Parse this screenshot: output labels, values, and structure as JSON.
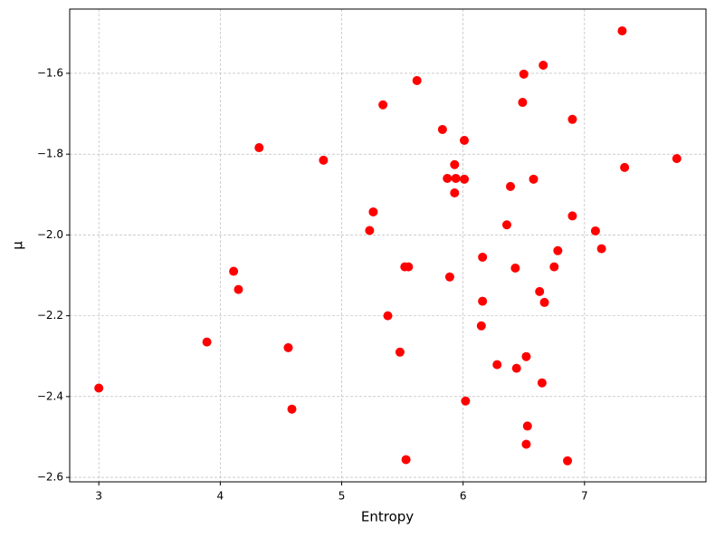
{
  "chart_data": {
    "type": "scatter",
    "xlabel": "Entropy",
    "ylabel": "μ",
    "color": "#ff0000",
    "grid": true,
    "xlim": [
      2.76,
      8.0
    ],
    "ylim": [
      -2.611,
      -1.441
    ],
    "xticks": [
      3,
      4,
      5,
      6,
      7
    ],
    "yticks": [
      {
        "value": -2.6,
        "label": "−2.6"
      },
      {
        "value": -2.4,
        "label": "−2.4"
      },
      {
        "value": -2.2,
        "label": "−2.2"
      },
      {
        "value": -2.0,
        "label": "−2.0"
      },
      {
        "value": -1.8,
        "label": "−1.8"
      },
      {
        "value": -1.6,
        "label": "−1.6"
      }
    ],
    "x": [
      7.31,
      6.66,
      6.5,
      5.62,
      5.34,
      6.49,
      6.9,
      5.83,
      6.01,
      4.32,
      4.85,
      7.76,
      7.33,
      5.93,
      5.87,
      5.94,
      6.01,
      6.58,
      6.39,
      5.93,
      5.26,
      6.9,
      6.36,
      5.23,
      7.09,
      7.14,
      6.78,
      6.16,
      5.52,
      5.55,
      6.43,
      6.75,
      4.11,
      5.89,
      4.15,
      6.63,
      6.67,
      6.16,
      5.38,
      6.15,
      3.89,
      4.56,
      5.48,
      6.52,
      6.28,
      6.44,
      6.65,
      3.0,
      6.02,
      4.59,
      6.53,
      6.52,
      5.53,
      6.86
    ],
    "y": [
      -1.495,
      -1.58,
      -1.602,
      -1.618,
      -1.678,
      -1.672,
      -1.714,
      -1.739,
      -1.766,
      -1.784,
      -1.815,
      -1.811,
      -1.833,
      -1.826,
      -1.86,
      -1.86,
      -1.862,
      -1.862,
      -1.88,
      -1.896,
      -1.943,
      -1.953,
      -1.975,
      -1.989,
      -1.99,
      -2.034,
      -2.039,
      -2.055,
      -2.079,
      -2.079,
      -2.082,
      -2.079,
      -2.09,
      -2.104,
      -2.135,
      -2.14,
      -2.167,
      -2.164,
      -2.2,
      -2.225,
      -2.265,
      -2.279,
      -2.29,
      -2.301,
      -2.321,
      -2.33,
      -2.366,
      -2.379,
      -2.411,
      -2.431,
      -2.473,
      -2.518,
      -2.556,
      -2.559
    ]
  }
}
